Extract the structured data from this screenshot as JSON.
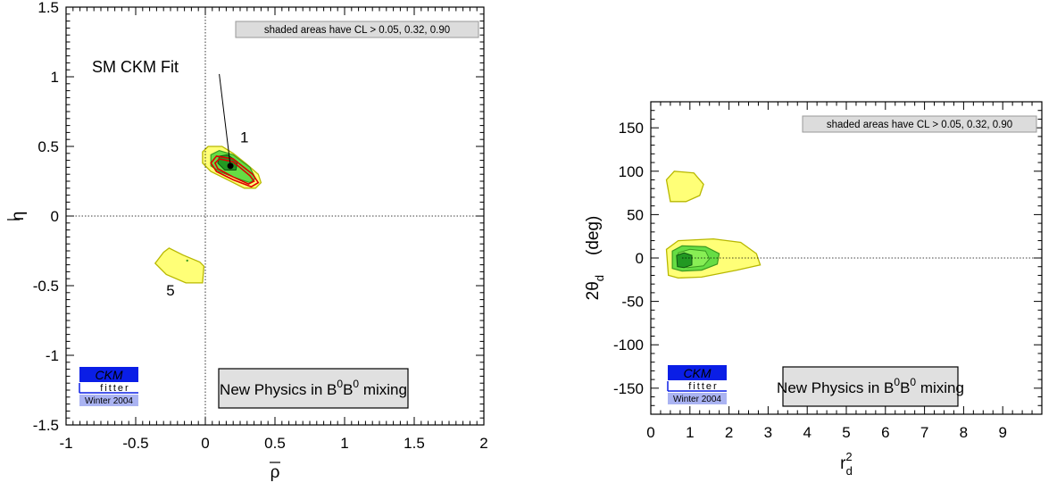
{
  "chart_data": [
    {
      "type": "contour",
      "xlabel_base": "ρ",
      "ylabel_base": "η",
      "xlim": [
        -1,
        2
      ],
      "ylim": [
        -1.5,
        1.5
      ],
      "xticks": [
        -1,
        -0.5,
        0,
        0.5,
        1,
        1.5,
        2
      ],
      "xtick_labels": [
        "-1",
        "-0.5",
        "0",
        "0.5",
        "1",
        "1.5",
        "2"
      ],
      "yticks": [
        -1.5,
        -1,
        -0.5,
        0,
        0.5,
        1,
        1.5
      ],
      "ytick_labels": [
        "-1.5",
        "-1",
        "-0.5",
        "0",
        "0.5",
        "1",
        "1.5"
      ],
      "cl_note": "shaded areas have CL > 0.05, 0.32, 0.90",
      "annotation_fit": "SM CKM Fit",
      "region_labels": [
        {
          "text": "1",
          "x": 0.28,
          "y": 0.53
        },
        {
          "text": "5",
          "x": -0.25,
          "y": -0.57
        }
      ],
      "fit_point": {
        "x": 0.18,
        "y": 0.36
      },
      "fit_line_from": {
        "x": 0.1,
        "y": 1.02
      },
      "legend_box": {
        "pre": "New Physics in B",
        "mid": "B",
        "post": " mixing",
        "sup": "0"
      },
      "logo": {
        "line1": "CKM",
        "line2": "fitter",
        "line3": "Winter 2004"
      },
      "contours": {
        "yellow": [
          [
            [
              -0.02,
              0.38
            ],
            [
              -0.02,
              0.46
            ],
            [
              0.02,
              0.5
            ],
            [
              0.12,
              0.5
            ],
            [
              0.2,
              0.45
            ],
            [
              0.3,
              0.37
            ],
            [
              0.38,
              0.3
            ],
            [
              0.4,
              0.24
            ],
            [
              0.36,
              0.2
            ],
            [
              0.28,
              0.2
            ],
            [
              0.16,
              0.26
            ],
            [
              0.04,
              0.32
            ]
          ],
          [
            [
              -0.3,
              -0.26
            ],
            [
              -0.36,
              -0.34
            ],
            [
              -0.28,
              -0.42
            ],
            [
              -0.14,
              -0.48
            ],
            [
              -0.02,
              -0.48
            ],
            [
              -0.01,
              -0.36
            ],
            [
              -0.04,
              -0.33
            ],
            [
              -0.16,
              -0.28
            ],
            [
              -0.26,
              -0.23
            ]
          ]
        ],
        "green": [
          [
            [
              0.04,
              0.36
            ],
            [
              0.04,
              0.44
            ],
            [
              0.1,
              0.47
            ],
            [
              0.2,
              0.44
            ],
            [
              0.32,
              0.35
            ],
            [
              0.36,
              0.27
            ],
            [
              0.32,
              0.24
            ],
            [
              0.2,
              0.28
            ],
            [
              0.1,
              0.32
            ]
          ]
        ],
        "dark": [
          [
            [
              0.09,
              0.38
            ],
            [
              0.1,
              0.43
            ],
            [
              0.16,
              0.44
            ],
            [
              0.23,
              0.39
            ],
            [
              0.22,
              0.33
            ],
            [
              0.14,
              0.33
            ]
          ]
        ],
        "red": [
          [
            [
              0.04,
              0.38
            ],
            [
              0.08,
              0.43
            ],
            [
              0.2,
              0.41
            ],
            [
              0.34,
              0.3
            ],
            [
              0.38,
              0.24
            ],
            [
              0.33,
              0.21
            ],
            [
              0.2,
              0.26
            ],
            [
              0.08,
              0.32
            ]
          ],
          [
            [
              0.07,
              0.38
            ],
            [
              0.1,
              0.41
            ],
            [
              0.2,
              0.39
            ],
            [
              0.32,
              0.29
            ],
            [
              0.35,
              0.25
            ],
            [
              0.31,
              0.23
            ],
            [
              0.2,
              0.28
            ],
            [
              0.09,
              0.34
            ]
          ]
        ]
      }
    },
    {
      "type": "contour",
      "xlabel_base": "r",
      "xlabel_sup": "2",
      "xlabel_sub": "d",
      "ylabel_base": "2θ",
      "ylabel_sub": "d",
      "ylabel_unit": "(deg)",
      "xlim": [
        0,
        10
      ],
      "ylim": [
        -180,
        180
      ],
      "xticks": [
        0,
        1,
        2,
        3,
        4,
        5,
        6,
        7,
        8,
        9
      ],
      "xtick_labels": [
        "0",
        "1",
        "2",
        "3",
        "4",
        "5",
        "6",
        "7",
        "8",
        "9"
      ],
      "yticks": [
        -150,
        -100,
        -50,
        0,
        50,
        100,
        150
      ],
      "ytick_labels": [
        "-150",
        "-100",
        "-50",
        "0",
        "50",
        "100",
        "150"
      ],
      "cl_note": "shaded areas have CL > 0.05, 0.32, 0.90",
      "legend_box": {
        "pre": "New Physics in B",
        "mid": "B",
        "post": " mixing",
        "sup": "0"
      },
      "logo": {
        "line1": "CKM",
        "line2": "fitter",
        "line3": "Winter 2004"
      },
      "contours": {
        "yellow": [
          [
            [
              0.5,
              65
            ],
            [
              0.4,
              90
            ],
            [
              0.6,
              100
            ],
            [
              1.1,
              98
            ],
            [
              1.35,
              85
            ],
            [
              1.25,
              72
            ],
            [
              0.9,
              65
            ]
          ],
          [
            [
              0.45,
              -20
            ],
            [
              0.4,
              10
            ],
            [
              0.7,
              20
            ],
            [
              1.6,
              22
            ],
            [
              2.3,
              18
            ],
            [
              2.7,
              5
            ],
            [
              2.8,
              -8
            ],
            [
              2.2,
              -14
            ],
            [
              1.3,
              -22
            ],
            [
              0.7,
              -23
            ]
          ]
        ],
        "green": [
          [
            [
              0.55,
              -12
            ],
            [
              0.55,
              8
            ],
            [
              0.8,
              14
            ],
            [
              1.4,
              13
            ],
            [
              1.75,
              5
            ],
            [
              1.7,
              -7
            ],
            [
              1.3,
              -14
            ],
            [
              0.8,
              -15
            ]
          ]
        ],
        "lightgreen": [
          [
            [
              0.7,
              -9
            ],
            [
              0.7,
              6
            ],
            [
              1.0,
              10
            ],
            [
              1.4,
              8
            ],
            [
              1.5,
              -1
            ],
            [
              1.35,
              -9
            ],
            [
              0.95,
              -11
            ]
          ]
        ],
        "dark": [
          [
            [
              0.68,
              -10
            ],
            [
              0.66,
              3
            ],
            [
              0.85,
              6
            ],
            [
              1.05,
              3
            ],
            [
              1.05,
              -8
            ],
            [
              0.85,
              -11
            ]
          ]
        ]
      }
    }
  ]
}
